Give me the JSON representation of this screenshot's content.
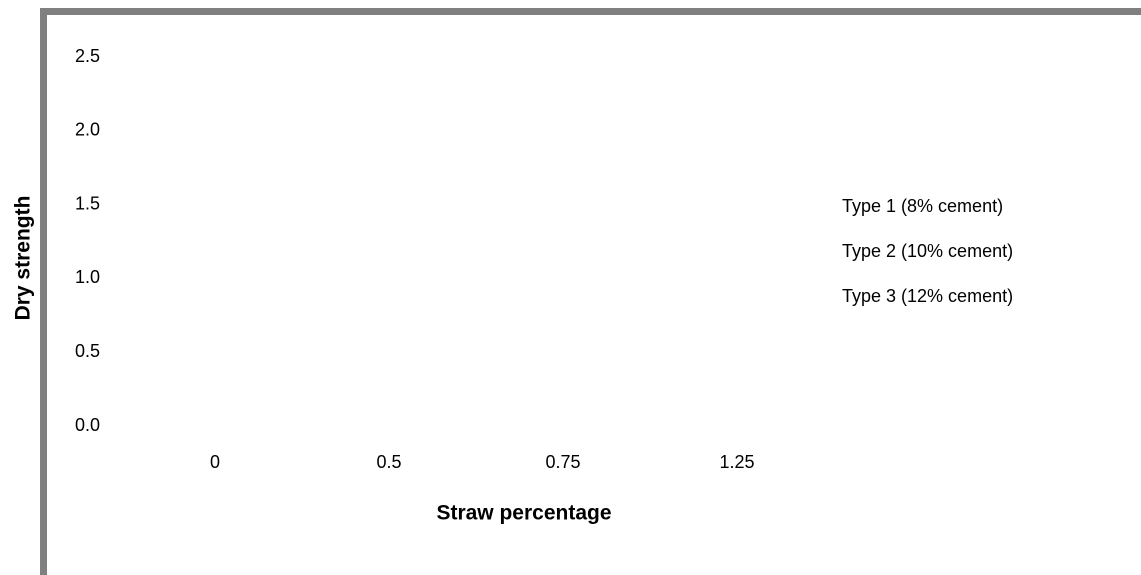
{
  "chart_data": {
    "type": "bar",
    "y_label": "Dry  strength",
    "x_label": "Straw percentage",
    "categories": [
      "0",
      "0.5",
      "0.75",
      "1.25"
    ],
    "series": [
      {
        "name": "Type 1 (8% cement)",
        "values": [
          null,
          null,
          null,
          null
        ]
      },
      {
        "name": "Type 2 (10% cement)",
        "values": [
          null,
          null,
          null,
          null
        ]
      },
      {
        "name": "Type 3 (12% cement)",
        "values": [
          null,
          null,
          null,
          null
        ]
      }
    ],
    "ylim": [
      0,
      2.5
    ],
    "yticks": [
      {
        "value": 0,
        "label": "0.0"
      },
      0.5,
      {
        "value": 1,
        "label": "1.0"
      },
      1.5,
      {
        "value": 2,
        "label": "2.0"
      },
      2.5
    ],
    "grid": false,
    "legend": "right"
  }
}
